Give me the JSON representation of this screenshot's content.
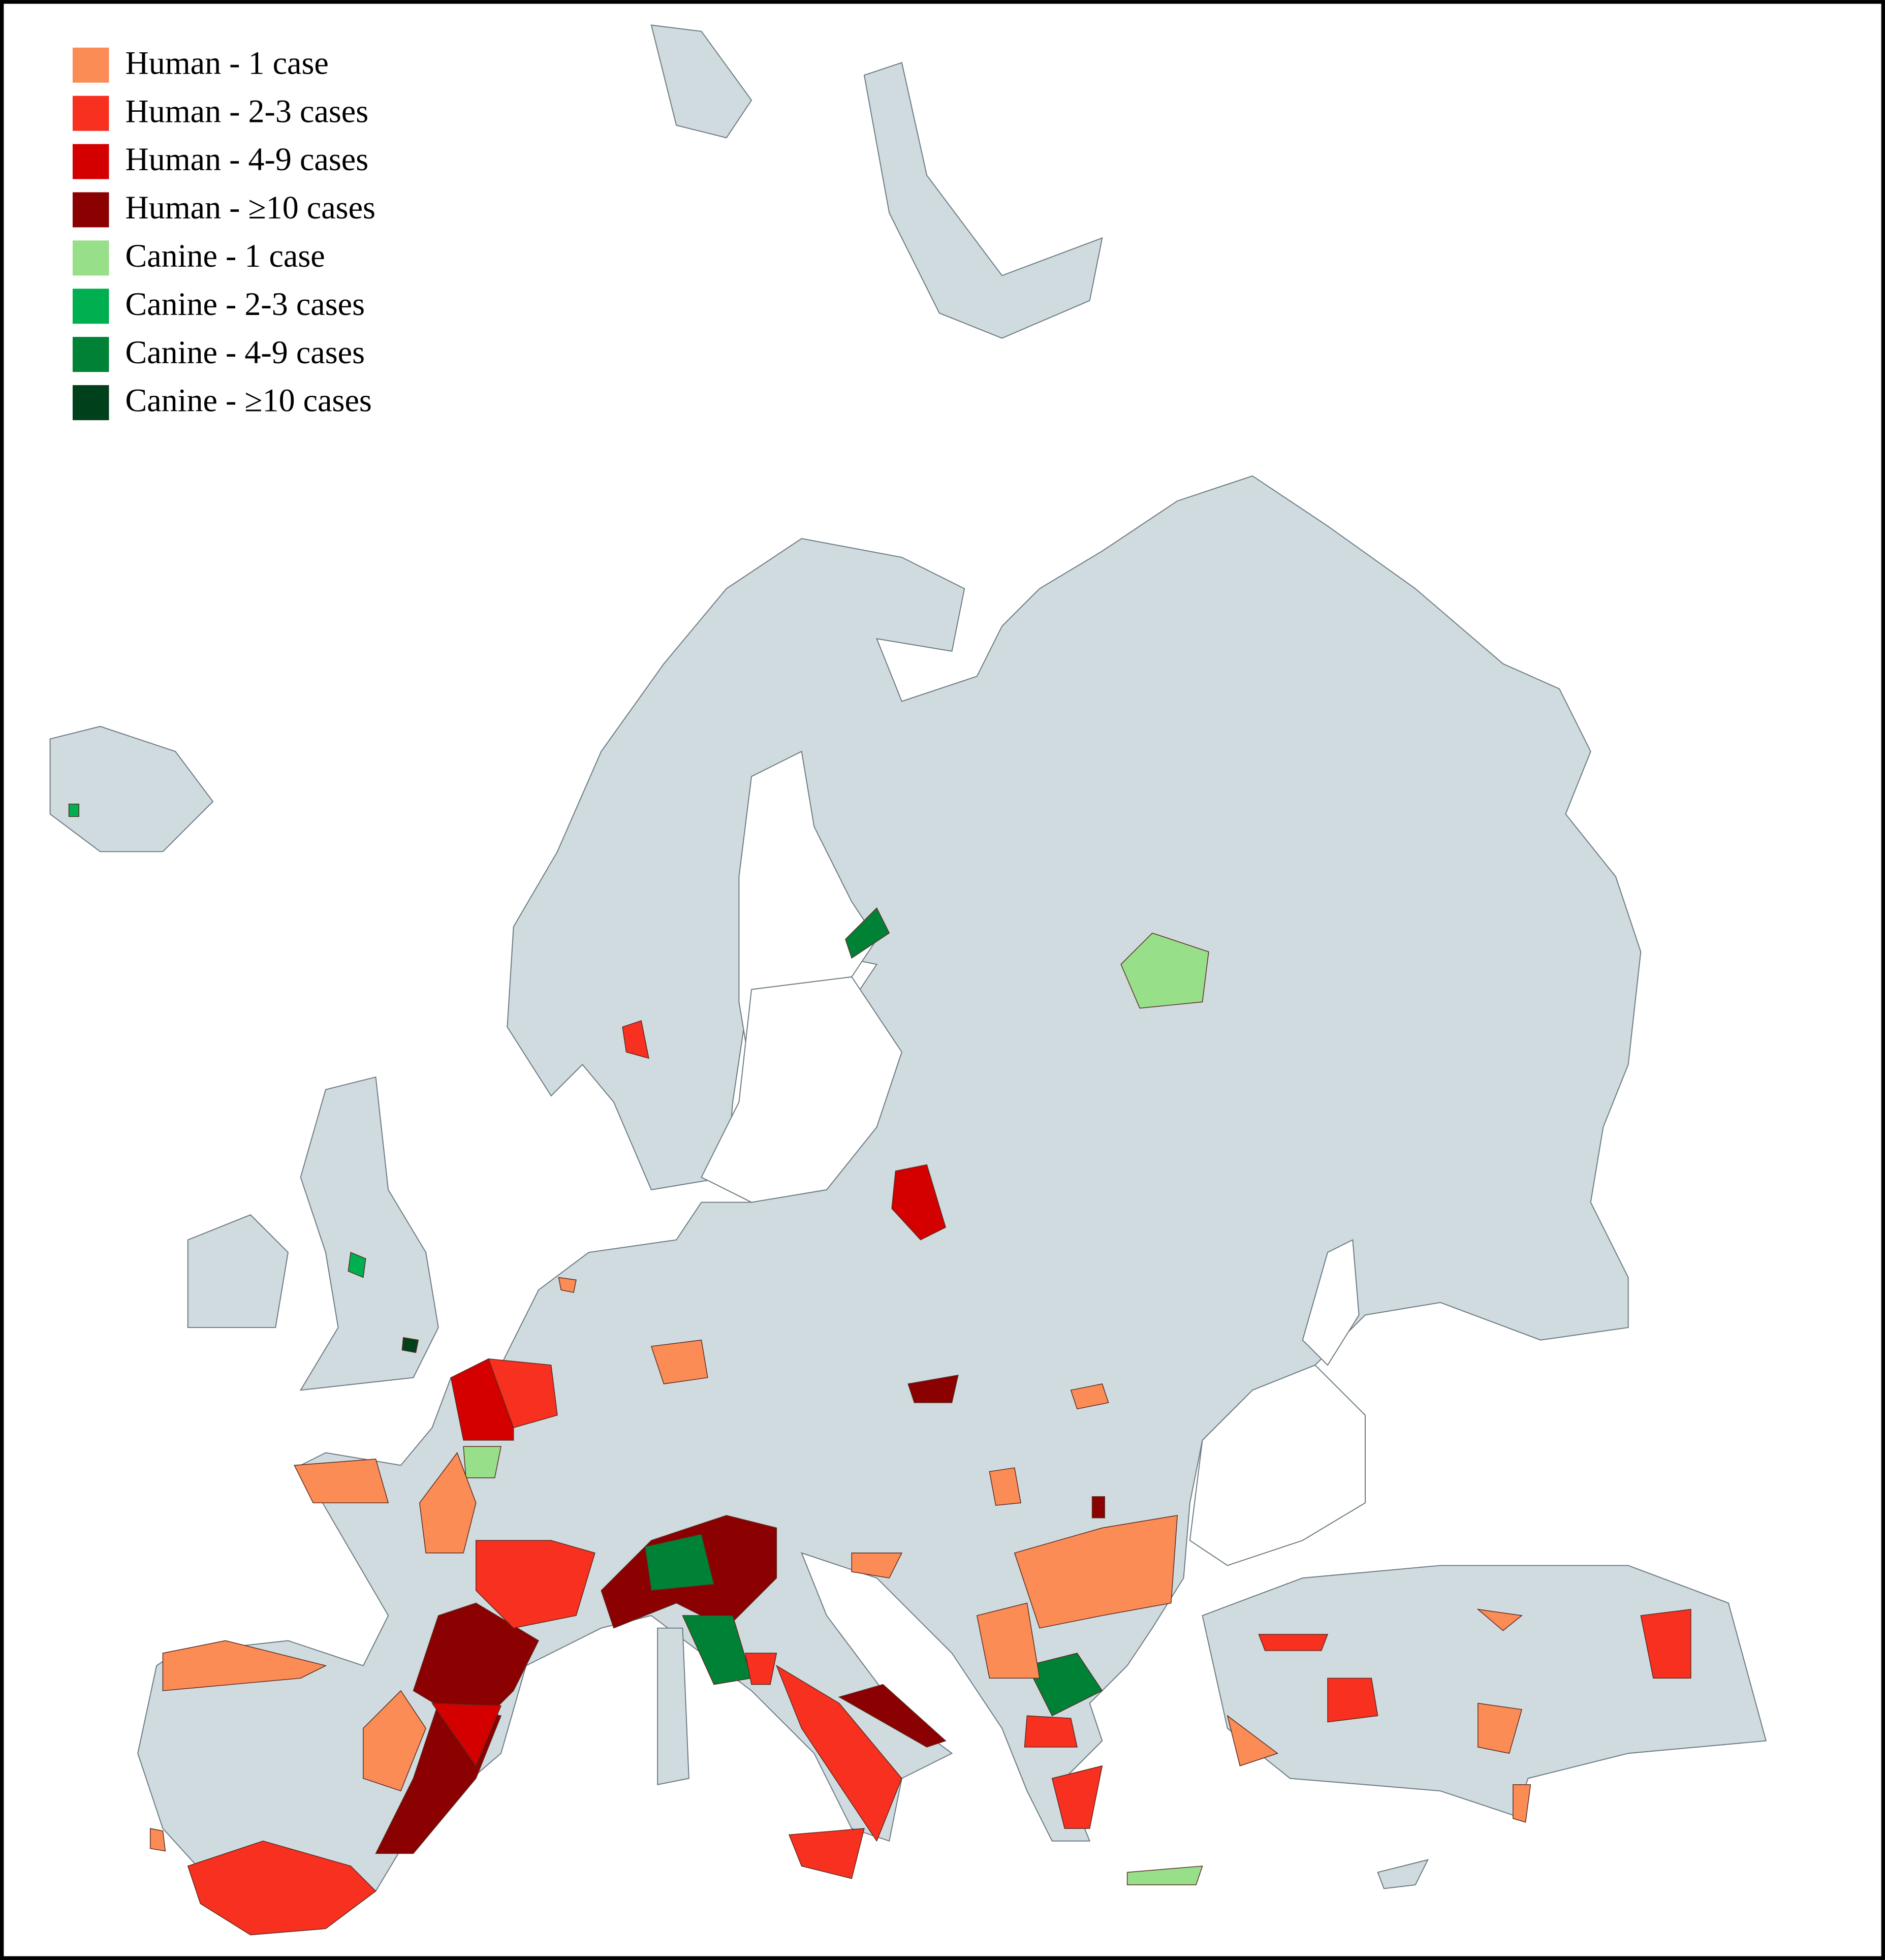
{
  "legend": [
    {
      "label": "Human - 1 case",
      "color": "#fb8c55"
    },
    {
      "label": "Human - 2-3 cases",
      "color": "#f7301f"
    },
    {
      "label": "Human - 4-9 cases",
      "color": "#d40000"
    },
    {
      "label": "Human - ≥10 cases",
      "color": "#8b0000"
    },
    {
      "label": "Canine - 1 case",
      "color": "#98df8a"
    },
    {
      "label": "Canine - 2-3 cases",
      "color": "#00b050"
    },
    {
      "label": "Canine - 4-9 cases",
      "color": "#008236"
    },
    {
      "label": "Canine - ≥10 cases",
      "color": "#00401b"
    }
  ]
}
